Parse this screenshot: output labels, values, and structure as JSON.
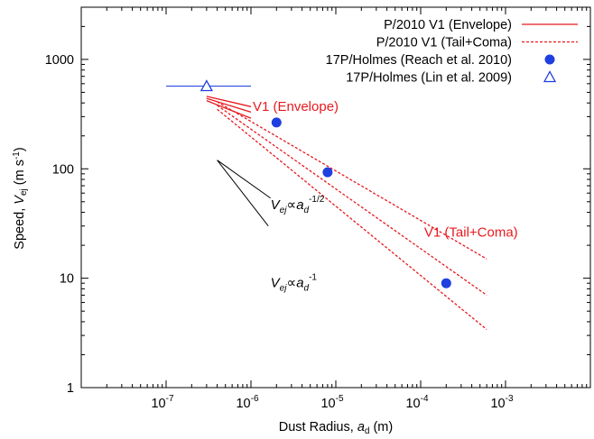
{
  "chart_data": {
    "type": "scatter",
    "xscale": "log",
    "yscale": "log",
    "xlim": [
      1e-08,
      0.01
    ],
    "ylim": [
      1,
      3000
    ],
    "xlabel": {
      "main": "Dust Radius, ",
      "var": "a",
      "sub": "d",
      "unit": " (m)"
    },
    "ylabel": {
      "main": "Speed, ",
      "var": "V",
      "sub": "ej",
      "unit_pre": " (m s",
      "unit_sup": "-1",
      "unit_post": ")"
    },
    "x_ticks": [
      {
        "value": 1e-07,
        "base": "10",
        "exp": "-7"
      },
      {
        "value": 1e-06,
        "base": "10",
        "exp": "-6"
      },
      {
        "value": 1e-05,
        "base": "10",
        "exp": "-5"
      },
      {
        "value": 0.0001,
        "base": "10",
        "exp": "-4"
      },
      {
        "value": 0.001,
        "base": "10",
        "exp": "-3"
      }
    ],
    "y_ticks": [
      {
        "value": 1,
        "label": "1"
      },
      {
        "value": 10,
        "label": "10"
      },
      {
        "value": 100,
        "label": "100"
      },
      {
        "value": 1000,
        "label": "1000"
      }
    ],
    "grid": false,
    "legend_position": "top-right",
    "series": [
      {
        "name": "P/2010 V1 (Envelope)",
        "kind": "line",
        "color": "#e8191e",
        "dash": "solid",
        "lines": [
          [
            [
              3e-07,
              460
            ],
            [
              1e-06,
              370
            ]
          ],
          [
            [
              3e-07,
              440
            ],
            [
              1e-06,
              330
            ]
          ],
          [
            [
              3e-07,
              420
            ],
            [
              1e-06,
              290
            ]
          ]
        ]
      },
      {
        "name": "P/2010 V1 (Tail+Coma)",
        "kind": "line",
        "color": "#e8191e",
        "dash": "dashed",
        "lines": [
          [
            [
              4e-07,
              410
            ],
            [
              0.0006,
              15
            ]
          ],
          [
            [
              4e-07,
              380
            ],
            [
              0.0006,
              7
            ]
          ],
          [
            [
              4e-07,
              350
            ],
            [
              0.0006,
              3.4
            ]
          ]
        ]
      },
      {
        "name": "17P/Holmes (Reach et al. 2010)",
        "kind": "points",
        "marker": "circle",
        "color": "#1f3fe0",
        "points": [
          [
            2e-06,
            265
          ],
          [
            8e-06,
            93
          ],
          [
            0.0002,
            9
          ]
        ]
      },
      {
        "name": "17P/Holmes (Lin et al. 2009)",
        "kind": "points",
        "marker": "triangle",
        "color": "#1f3fe0",
        "points": [
          [
            3e-07,
            570
          ]
        ],
        "hline": {
          "y": 570,
          "x_from": 1e-07,
          "x_to": 1e-06
        }
      }
    ],
    "reference_lines": [
      {
        "from": [
          4e-07,
          120
        ],
        "to": [
          1.7e-06,
          54
        ],
        "color": "#000000"
      },
      {
        "from": [
          4e-07,
          120
        ],
        "to": [
          1.6e-06,
          30
        ],
        "color": "#000000"
      }
    ],
    "annotations": [
      {
        "text": "V1 (Envelope)",
        "color": "#e8191e",
        "x": 1.05e-06,
        "y": 340
      },
      {
        "text": "V1 (Tail+Coma)",
        "color": "#e8191e",
        "x": 0.00011,
        "y": 24
      }
    ],
    "equations": [
      {
        "x": 1.7e-06,
        "y": 43,
        "var": "V",
        "sub": "ej",
        "rel": "∝",
        "var2": "a",
        "sub2": "d",
        "sup": "-1/2"
      },
      {
        "x": 1.7e-06,
        "y": 8.3,
        "var": "V",
        "sub": "ej",
        "rel": "∝",
        "var2": "a",
        "sub2": "d",
        "sup": "-1"
      }
    ]
  }
}
